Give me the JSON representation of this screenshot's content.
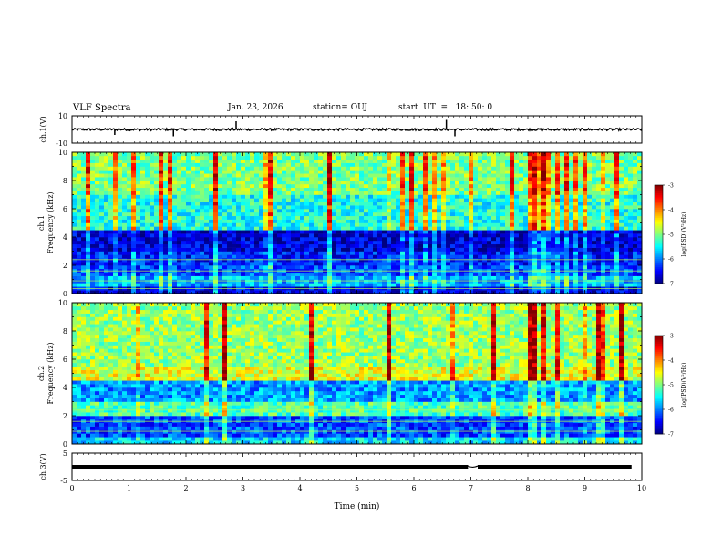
{
  "header": {
    "title": "VLF Spectra",
    "date": "Jan. 23, 2026",
    "station": "station= OUJ",
    "start": "start  UT  =   18: 50: 0"
  },
  "chart_data": [
    {
      "type": "line",
      "name_label": "ch.1(V)",
      "ylim": [
        -10,
        10
      ],
      "yticks": [
        "10",
        "-10"
      ],
      "baseline": 0,
      "spikes": [
        {
          "t": 0.75,
          "v": -4
        },
        {
          "t": 1.78,
          "v": -5
        },
        {
          "t": 2.88,
          "v": 6
        },
        {
          "t": 6.57,
          "v": 7
        },
        {
          "t": 6.72,
          "v": -5
        }
      ],
      "xlim": [
        0,
        10
      ]
    },
    {
      "type": "heatmap",
      "ylabel": "ch.1\nFrequency (kHz)",
      "ylim": [
        0,
        10
      ],
      "yticks": [
        "0",
        "2",
        "4",
        "6",
        "8",
        "10"
      ],
      "xlim": [
        0,
        10
      ],
      "colorbar": {
        "label": "log(PSD)(V²/Hz)",
        "ticks": [
          "-3",
          "-4",
          "-5",
          "-6",
          "-7"
        ],
        "range": [
          -7,
          -3
        ]
      },
      "bands": [
        {
          "f0": 0,
          "f1": 0.5,
          "level": -6.6
        },
        {
          "f0": 0.5,
          "f1": 1.2,
          "level": -5.8
        },
        {
          "f0": 1.2,
          "f1": 2.0,
          "level": -6.2
        },
        {
          "f0": 2.0,
          "f1": 3.0,
          "level": -6.4
        },
        {
          "f0": 3.0,
          "f1": 4.5,
          "level": -6.7
        },
        {
          "f0": 4.5,
          "f1": 7.0,
          "level": -5.4
        },
        {
          "f0": 7.0,
          "f1": 10.0,
          "level": -5.0
        }
      ]
    },
    {
      "type": "heatmap",
      "ylabel": "ch.2\nFrequency (kHz)",
      "ylim": [
        0,
        10
      ],
      "yticks": [
        "0",
        "2",
        "4",
        "6",
        "8",
        "10"
      ],
      "xlim": [
        0,
        10
      ],
      "colorbar": {
        "label": "log(PSD)(V²/Hz)",
        "ticks": [
          "-3",
          "-4",
          "-5",
          "-6",
          "-7"
        ],
        "range": [
          -7,
          -3
        ]
      },
      "bands": [
        {
          "f0": 0,
          "f1": 0.5,
          "level": -5.6
        },
        {
          "f0": 0.5,
          "f1": 2.0,
          "level": -6.2
        },
        {
          "f0": 2.0,
          "f1": 3.0,
          "level": -5.2
        },
        {
          "f0": 3.0,
          "f1": 4.5,
          "level": -5.9
        },
        {
          "f0": 4.5,
          "f1": 5.5,
          "level": -4.6
        },
        {
          "f0": 5.5,
          "f1": 10.0,
          "level": -4.9
        }
      ]
    },
    {
      "type": "line",
      "name_label": "ch.3(V)",
      "ylim": [
        -5,
        5
      ],
      "yticks": [
        "5",
        "-5"
      ],
      "baseline": 0,
      "xlim": [
        0,
        10
      ],
      "xlabel": "Time (min)",
      "xticks": [
        "0",
        "1",
        "2",
        "3",
        "4",
        "5",
        "6",
        "7",
        "8",
        "9",
        "10"
      ]
    }
  ],
  "colors": {
    "axis": "#000000",
    "background": "#ffffff"
  }
}
